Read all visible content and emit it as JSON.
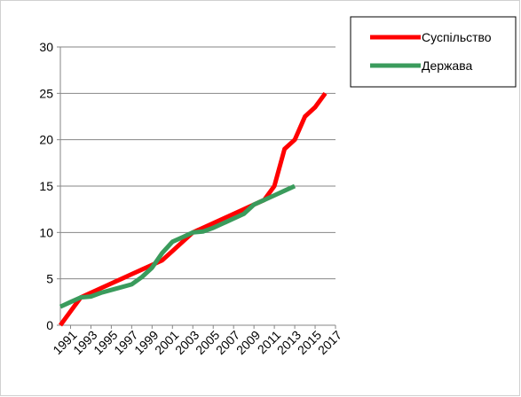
{
  "chart_data": {
    "type": "line",
    "y_ticks": [
      0,
      5,
      10,
      15,
      20,
      25,
      30
    ],
    "ylim": [
      0,
      30
    ],
    "x_tick_labels": [
      "1991",
      "1993",
      "1995",
      "1997",
      "1999",
      "2001",
      "2003",
      "2005",
      "2007",
      "2009",
      "2011",
      "2013",
      "2015",
      "2017"
    ],
    "xlim": [
      1990,
      2017
    ],
    "grid": "horizontal",
    "legend_position": "top-right",
    "series": [
      {
        "name": "Суспільство",
        "color": "#ff0000",
        "points": [
          [
            1990,
            0
          ],
          [
            1991,
            1.5
          ],
          [
            1992,
            3
          ],
          [
            1993,
            3.5
          ],
          [
            1994,
            4
          ],
          [
            1995,
            4.5
          ],
          [
            1996,
            5
          ],
          [
            1997,
            5.5
          ],
          [
            1998,
            6
          ],
          [
            1999,
            6.5
          ],
          [
            2000,
            7
          ],
          [
            2001,
            8
          ],
          [
            2002,
            9
          ],
          [
            2003,
            10
          ],
          [
            2004,
            10.5
          ],
          [
            2005,
            11
          ],
          [
            2006,
            11.5
          ],
          [
            2007,
            12
          ],
          [
            2008,
            12.5
          ],
          [
            2009,
            13
          ],
          [
            2010,
            13.5
          ],
          [
            2011,
            15
          ],
          [
            2012,
            19
          ],
          [
            2013,
            20
          ],
          [
            2014,
            22.5
          ],
          [
            2015,
            23.5
          ],
          [
            2016,
            25
          ]
        ]
      },
      {
        "name": "Держава",
        "color": "#3a9b5c",
        "points": [
          [
            1990,
            2
          ],
          [
            1991,
            2.5
          ],
          [
            1992,
            3
          ],
          [
            1993,
            3.1
          ],
          [
            1994,
            3.5
          ],
          [
            1995,
            3.8
          ],
          [
            1996,
            4.1
          ],
          [
            1997,
            4.4
          ],
          [
            1998,
            5.2
          ],
          [
            1999,
            6.2
          ],
          [
            2000,
            7.8
          ],
          [
            2001,
            9
          ],
          [
            2002,
            9.5
          ],
          [
            2003,
            10
          ],
          [
            2004,
            10.1
          ],
          [
            2005,
            10.5
          ],
          [
            2006,
            11
          ],
          [
            2007,
            11.5
          ],
          [
            2008,
            12
          ],
          [
            2009,
            13
          ],
          [
            2010,
            13.5
          ],
          [
            2011,
            14
          ],
          [
            2012,
            14.5
          ],
          [
            2013,
            15
          ]
        ]
      }
    ]
  }
}
